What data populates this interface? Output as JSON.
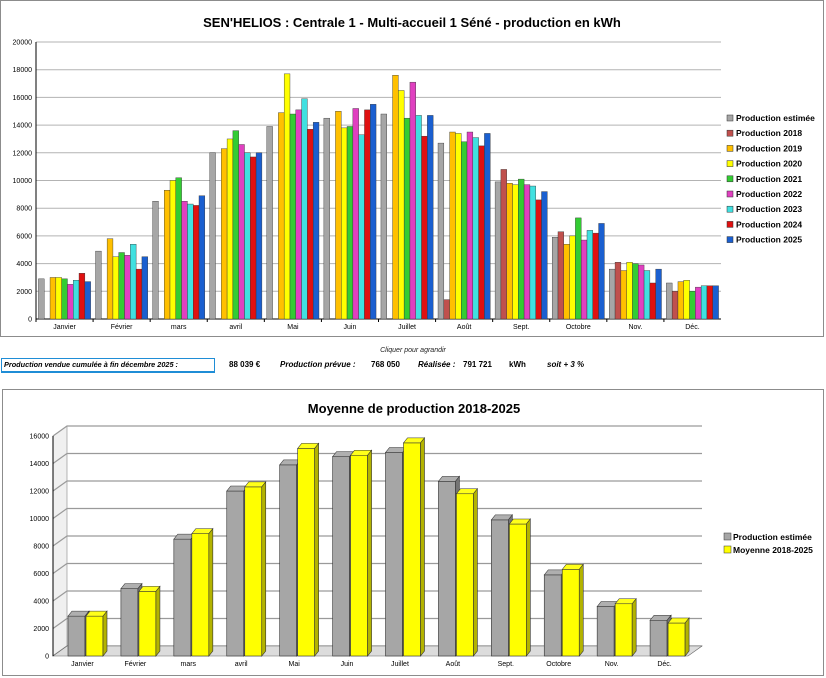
{
  "top_chart": {
    "title": "SEN'HELIOS : Centrale 1  - Multi-accueil 1  Séné - production en kWh"
  },
  "caption": "Cliquer pour agrandir",
  "summary": {
    "label": "Production vendue cumulée à fin décembre 2025 :",
    "amount": "88 039 €",
    "prevue_label": "Production prévue :",
    "prevue_value": "768 050",
    "realisee_label": "Réalisée :",
    "realisee_value": "791 721",
    "unit": "kWh",
    "ratio": "soit + 3 %"
  },
  "bottom_chart": {
    "title": "Moyenne de production 2018-2025"
  },
  "chart_data": [
    {
      "type": "bar",
      "title": "SEN'HELIOS : Centrale 1  - Multi-accueil 1  Séné - production en kWh",
      "categories": [
        "Janvier",
        "Février",
        "mars",
        "avril",
        "Mai",
        "Juin",
        "Juillet",
        "Août",
        "Sept.",
        "Octobre",
        "Nov.",
        "Déc."
      ],
      "ylim": [
        0,
        20000
      ],
      "yticks": [
        0,
        2000,
        4000,
        6000,
        8000,
        10000,
        12000,
        14000,
        16000,
        18000,
        20000
      ],
      "grid": true,
      "legend_position": "right",
      "series": [
        {
          "name": "Production estimée",
          "color": "#a6a6a6",
          "values": [
            2900,
            4900,
            8500,
            12000,
            13900,
            14500,
            14800,
            12700,
            9900,
            5900,
            3600,
            2600
          ]
        },
        {
          "name": "Production 2018",
          "color": "#c0504d",
          "values": [
            null,
            null,
            null,
            null,
            null,
            null,
            null,
            1400,
            10800,
            6300,
            4100,
            2000
          ]
        },
        {
          "name": "Production 2019",
          "color": "#ffc000",
          "values": [
            3000,
            5800,
            9300,
            12300,
            14900,
            15000,
            17600,
            13500,
            9800,
            5400,
            3500,
            2700
          ]
        },
        {
          "name": "Production 2020",
          "color": "#ffff00",
          "values": [
            3000,
            4500,
            10000,
            13000,
            17700,
            13800,
            16500,
            13400,
            9700,
            6000,
            4100,
            2800
          ]
        },
        {
          "name": "Production 2021",
          "color": "#33cc33",
          "values": [
            2900,
            4800,
            10200,
            13600,
            14800,
            13900,
            14500,
            12800,
            10100,
            7300,
            4000,
            2000
          ]
        },
        {
          "name": "Production 2022",
          "color": "#e040c0",
          "values": [
            2500,
            4600,
            8500,
            12600,
            15100,
            15200,
            17100,
            13500,
            9700,
            5700,
            3900,
            2300
          ]
        },
        {
          "name": "Production 2023",
          "color": "#40e0e0",
          "values": [
            2800,
            5400,
            8300,
            12000,
            15900,
            13300,
            14700,
            13100,
            9600,
            6400,
            3500,
            2400
          ]
        },
        {
          "name": "Production 2024",
          "color": "#e01010",
          "values": [
            3300,
            3600,
            8200,
            11700,
            13700,
            15100,
            13200,
            12500,
            8600,
            6200,
            2600,
            2400
          ]
        },
        {
          "name": "Production 2025",
          "color": "#1a5fd0",
          "values": [
            2700,
            4500,
            8900,
            12000,
            14200,
            15500,
            14700,
            13400,
            9200,
            6900,
            3600,
            2400
          ]
        }
      ]
    },
    {
      "type": "bar",
      "title": "Moyenne de production 2018-2025",
      "categories": [
        "Janvier",
        "Février",
        "mars",
        "avril",
        "Mai",
        "Juin",
        "Juillet",
        "Août",
        "Sept.",
        "Octobre",
        "Nov.",
        "Déc."
      ],
      "ylim": [
        0,
        16000
      ],
      "yticks": [
        0,
        2000,
        4000,
        6000,
        8000,
        10000,
        12000,
        14000,
        16000
      ],
      "grid": true,
      "legend_position": "right",
      "style": "3d",
      "series": [
        {
          "name": "Production estimée",
          "color": "#a6a6a6",
          "values": [
            2900,
            4900,
            8500,
            12000,
            13900,
            14500,
            14800,
            12700,
            9900,
            5900,
            3600,
            2600
          ]
        },
        {
          "name": "Moyenne 2018-2025",
          "color": "#ffff00",
          "values": [
            2900,
            4700,
            8900,
            12300,
            15100,
            14600,
            15500,
            11800,
            9600,
            6300,
            3800,
            2400
          ]
        }
      ]
    }
  ]
}
